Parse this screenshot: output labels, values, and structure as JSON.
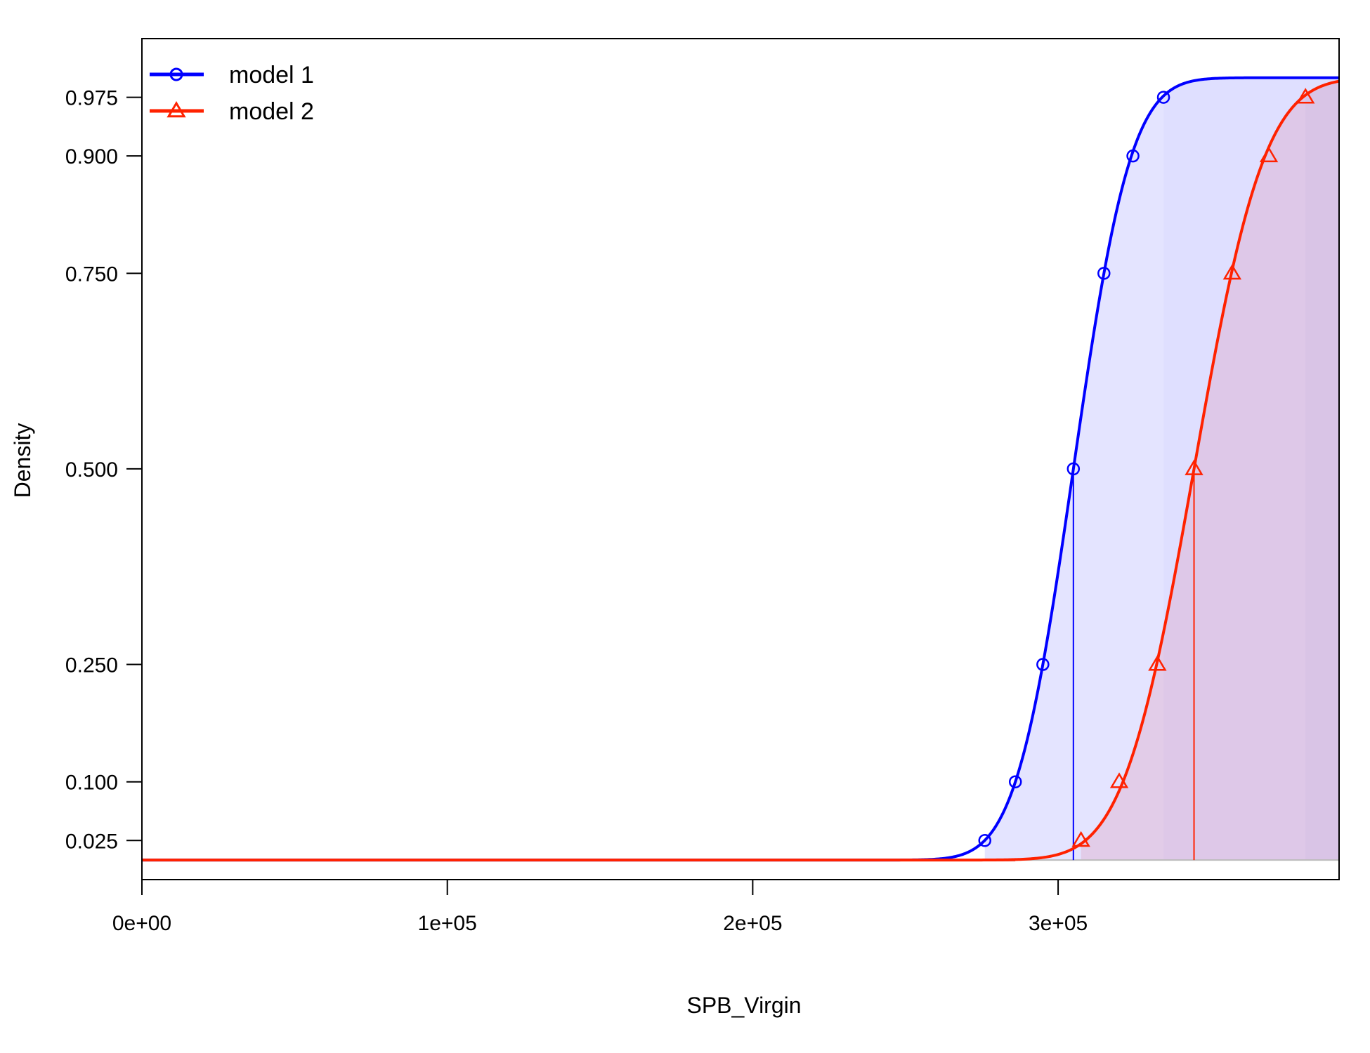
{
  "chart_data": {
    "type": "line",
    "title": "",
    "xlabel": "SPB_Virgin",
    "ylabel": "Density",
    "xlim": [
      0,
      392000
    ],
    "ylim": [
      -0.025,
      1.05
    ],
    "x_ticks": [
      {
        "value": 0,
        "label": "0e+00"
      },
      {
        "value": 100000,
        "label": "1e+05"
      },
      {
        "value": 200000,
        "label": "2e+05"
      },
      {
        "value": 300000,
        "label": "3e+05"
      }
    ],
    "y_ticks": [
      {
        "value": 0.025,
        "label": "0.025"
      },
      {
        "value": 0.1,
        "label": "0.100"
      },
      {
        "value": 0.25,
        "label": "0.250"
      },
      {
        "value": 0.5,
        "label": "0.500"
      },
      {
        "value": 0.75,
        "label": "0.750"
      },
      {
        "value": 0.9,
        "label": "0.900"
      },
      {
        "value": 0.975,
        "label": "0.975"
      }
    ],
    "legend": "top-left",
    "grid": false,
    "series": [
      {
        "name": "model 1",
        "color": "#0000ff",
        "marker": "circle",
        "quantile_marks": [
          {
            "p": 0.025,
            "x": 276000
          },
          {
            "p": 0.1,
            "x": 286000
          },
          {
            "p": 0.25,
            "x": 295000
          },
          {
            "p": 0.5,
            "x": 305000
          },
          {
            "p": 0.75,
            "x": 315000
          },
          {
            "p": 0.9,
            "x": 324500
          },
          {
            "p": 0.975,
            "x": 334500
          }
        ],
        "median": 305000,
        "interval_95": [
          276000,
          334500
        ]
      },
      {
        "name": "model 2",
        "color": "#ff2200",
        "marker": "triangle",
        "quantile_marks": [
          {
            "p": 0.025,
            "x": 307500
          },
          {
            "p": 0.1,
            "x": 320000
          },
          {
            "p": 0.25,
            "x": 332500
          },
          {
            "p": 0.5,
            "x": 344500
          },
          {
            "p": 0.75,
            "x": 357000
          },
          {
            "p": 0.9,
            "x": 369000
          },
          {
            "p": 0.975,
            "x": 381000
          }
        ],
        "median": 344500,
        "interval_95": [
          307500,
          381000
        ]
      }
    ]
  }
}
